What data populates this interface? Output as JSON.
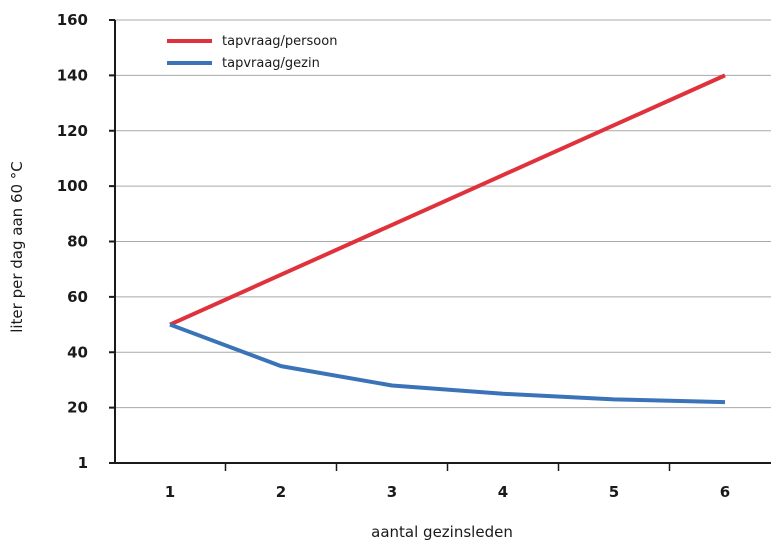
{
  "chart_data": {
    "type": "line",
    "title": "",
    "xlabel": "aantal gezinsleden",
    "ylabel": "liter per dag aan 60 °C",
    "x": [
      1,
      2,
      3,
      4,
      5,
      6
    ],
    "x_tick_labels": [
      "1",
      "2",
      "3",
      "4",
      "5",
      "6"
    ],
    "y_tick_labels": [
      "1",
      "20",
      "40",
      "60",
      "80",
      "100",
      "120",
      "140",
      "160"
    ],
    "ylim": [
      0,
      160
    ],
    "grid": true,
    "legend_position": "top-left",
    "series": [
      {
        "name": "tapvraag/persoon",
        "color": "#e0323c",
        "values": [
          50,
          68,
          86,
          104,
          122,
          140
        ]
      },
      {
        "name": "tapvraag/gezin",
        "color": "#3b73b9",
        "values": [
          50,
          35,
          28,
          25,
          23,
          22
        ]
      }
    ]
  }
}
